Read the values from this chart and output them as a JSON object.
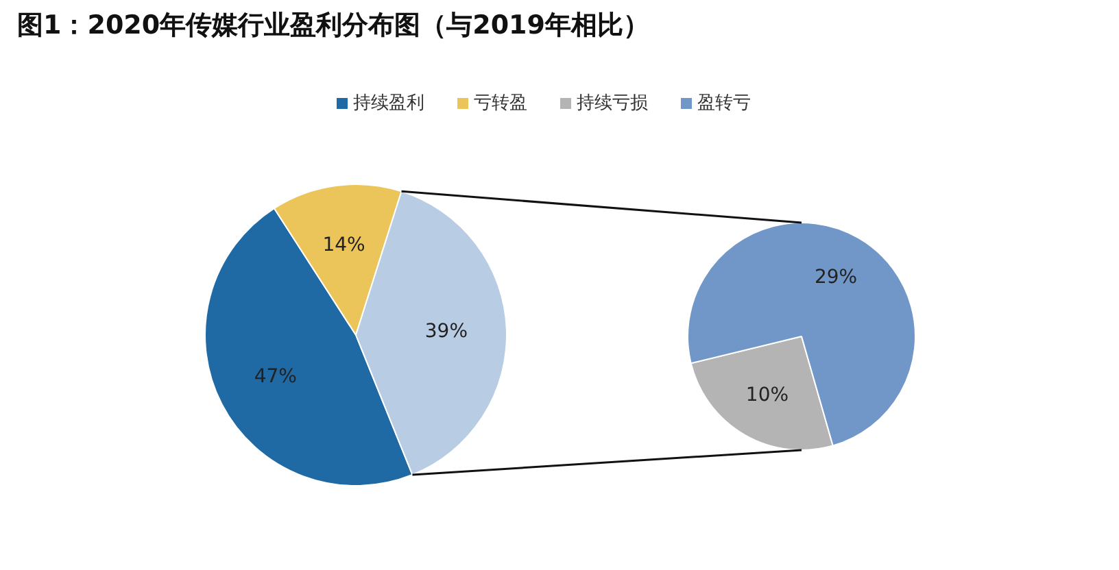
{
  "chart_data": [
    {
      "type": "pie",
      "title": "图1：2020年传媒行业盈利分布图（与2019年相比）",
      "legend": "top",
      "categories": [
        "持续盈利",
        "亏转盈",
        null
      ],
      "values": [
        47,
        14,
        39
      ],
      "colors": [
        "#1f6aa5",
        "#ecc55a",
        "#b8cce4"
      ],
      "value_labels": [
        "47%",
        "14%",
        "39%"
      ]
    },
    {
      "type": "pie",
      "legend": "top",
      "categories": [
        "持续亏损",
        "盈转亏"
      ],
      "values": [
        10,
        29
      ],
      "colors": [
        "#b4b4b4",
        "#7097c8"
      ],
      "value_labels": [
        "10%",
        "29%"
      ]
    }
  ]
}
